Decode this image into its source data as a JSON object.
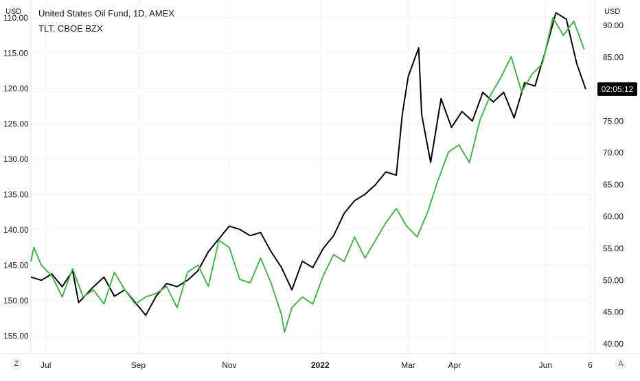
{
  "chart_data": {
    "type": "line",
    "title": "United States Oil Fund, 1D, AMEX",
    "subtitle": "TLT, CBOE BZX",
    "left_axis": {
      "unit": "USD",
      "inverted": true,
      "ticks": [
        "110.00",
        "115.00",
        "120.00",
        "125.00",
        "130.00",
        "135.00",
        "140.00",
        "145.00",
        "150.00",
        "155.00"
      ],
      "range": [
        107.5,
        157.5
      ]
    },
    "right_axis": {
      "unit": "USD",
      "ticks": [
        "90.00",
        "85.00",
        "80.00",
        "75.00",
        "70.00",
        "65.00",
        "60.00",
        "55.00",
        "50.00",
        "45.00",
        "40.00"
      ],
      "range": [
        38.5,
        94.0
      ],
      "price_label": "02:05:12",
      "price_value": 80.0
    },
    "x_ticks": [
      "Jul",
      "Sep",
      "Nov",
      "2022",
      "Mar",
      "Apr",
      "Jun",
      "6"
    ],
    "x_tick_dates": [
      "2021-07-01",
      "2021-09-01",
      "2021-11-01",
      "2022-01-01",
      "2022-03-01",
      "2022-04-01",
      "2022-06-01",
      "2022-07-01"
    ],
    "x_range": [
      "2021-06-21",
      "2022-07-04"
    ],
    "grid": true,
    "series": [
      {
        "name": "United States Oil Fund",
        "axis": "right",
        "color": "#000000",
        "points": [
          [
            "2021-06-21",
            50.5
          ],
          [
            "2021-06-28",
            50.0
          ],
          [
            "2021-07-05",
            51.0
          ],
          [
            "2021-07-12",
            49.0
          ],
          [
            "2021-07-19",
            51.5
          ],
          [
            "2021-07-23",
            46.5
          ],
          [
            "2021-08-02",
            49.0
          ],
          [
            "2021-08-09",
            50.5
          ],
          [
            "2021-08-16",
            47.5
          ],
          [
            "2021-08-23",
            48.5
          ],
          [
            "2021-08-30",
            46.5
          ],
          [
            "2021-09-06",
            44.5
          ],
          [
            "2021-09-13",
            47.5
          ],
          [
            "2021-09-20",
            49.5
          ],
          [
            "2021-09-27",
            49.0
          ],
          [
            "2021-10-04",
            50.0
          ],
          [
            "2021-10-11",
            51.5
          ],
          [
            "2021-10-18",
            54.5
          ],
          [
            "2021-10-25",
            56.5
          ],
          [
            "2021-11-01",
            58.5
          ],
          [
            "2021-11-08",
            58.0
          ],
          [
            "2021-11-15",
            57.0
          ],
          [
            "2021-11-22",
            57.5
          ],
          [
            "2021-11-29",
            54.5
          ],
          [
            "2021-12-06",
            52.0
          ],
          [
            "2021-12-13",
            48.5
          ],
          [
            "2021-12-20",
            53.0
          ],
          [
            "2021-12-27",
            52.0
          ],
          [
            "2022-01-03",
            55.0
          ],
          [
            "2022-01-10",
            57.0
          ],
          [
            "2022-01-17",
            60.5
          ],
          [
            "2022-01-24",
            62.5
          ],
          [
            "2022-01-31",
            63.5
          ],
          [
            "2022-02-07",
            65.0
          ],
          [
            "2022-02-14",
            67.0
          ],
          [
            "2022-02-21",
            66.5
          ],
          [
            "2022-02-25",
            76.0
          ],
          [
            "2022-03-01",
            82.0
          ],
          [
            "2022-03-08",
            86.5
          ],
          [
            "2022-03-10",
            76.0
          ],
          [
            "2022-03-16",
            68.5
          ],
          [
            "2022-03-23",
            78.5
          ],
          [
            "2022-03-30",
            74.0
          ],
          [
            "2022-04-06",
            76.5
          ],
          [
            "2022-04-13",
            75.0
          ],
          [
            "2022-04-20",
            79.5
          ],
          [
            "2022-04-27",
            78.0
          ],
          [
            "2022-05-04",
            79.5
          ],
          [
            "2022-05-11",
            75.5
          ],
          [
            "2022-05-18",
            81.0
          ],
          [
            "2022-05-25",
            80.5
          ],
          [
            "2022-06-01",
            86.0
          ],
          [
            "2022-06-08",
            92.0
          ],
          [
            "2022-06-15",
            91.0
          ],
          [
            "2022-06-22",
            84.0
          ],
          [
            "2022-06-28",
            80.0
          ]
        ]
      },
      {
        "name": "TLT",
        "axis": "left",
        "color": "#4caf50",
        "points": [
          [
            "2021-06-21",
            144.5
          ],
          [
            "2021-06-23",
            142.5
          ],
          [
            "2021-06-28",
            145.0
          ],
          [
            "2021-07-05",
            146.5
          ],
          [
            "2021-07-12",
            149.5
          ],
          [
            "2021-07-19",
            145.5
          ],
          [
            "2021-07-26",
            149.5
          ],
          [
            "2021-08-02",
            148.5
          ],
          [
            "2021-08-09",
            150.5
          ],
          [
            "2021-08-16",
            146.0
          ],
          [
            "2021-08-23",
            148.5
          ],
          [
            "2021-08-30",
            150.5
          ],
          [
            "2021-09-06",
            149.5
          ],
          [
            "2021-09-13",
            149.0
          ],
          [
            "2021-09-20",
            148.0
          ],
          [
            "2021-09-27",
            151.0
          ],
          [
            "2021-10-04",
            146.0
          ],
          [
            "2021-10-11",
            145.0
          ],
          [
            "2021-10-18",
            148.0
          ],
          [
            "2021-10-25",
            141.5
          ],
          [
            "2021-11-01",
            142.5
          ],
          [
            "2021-11-08",
            147.0
          ],
          [
            "2021-11-15",
            147.5
          ],
          [
            "2021-11-22",
            144.0
          ],
          [
            "2021-11-29",
            147.5
          ],
          [
            "2021-12-06",
            152.0
          ],
          [
            "2021-12-08",
            154.5
          ],
          [
            "2021-12-13",
            151.0
          ],
          [
            "2021-12-20",
            149.5
          ],
          [
            "2021-12-27",
            150.5
          ],
          [
            "2022-01-03",
            146.5
          ],
          [
            "2022-01-10",
            143.5
          ],
          [
            "2022-01-17",
            144.5
          ],
          [
            "2022-01-24",
            141.0
          ],
          [
            "2022-01-31",
            144.0
          ],
          [
            "2022-02-07",
            141.5
          ],
          [
            "2022-02-14",
            139.0
          ],
          [
            "2022-02-21",
            137.0
          ],
          [
            "2022-02-28",
            139.5
          ],
          [
            "2022-03-07",
            141.0
          ],
          [
            "2022-03-14",
            137.5
          ],
          [
            "2022-03-21",
            133.0
          ],
          [
            "2022-03-28",
            129.0
          ],
          [
            "2022-04-04",
            128.0
          ],
          [
            "2022-04-11",
            130.5
          ],
          [
            "2022-04-18",
            124.5
          ],
          [
            "2022-04-25",
            121.0
          ],
          [
            "2022-05-02",
            118.5
          ],
          [
            "2022-05-09",
            115.5
          ],
          [
            "2022-05-16",
            120.5
          ],
          [
            "2022-05-23",
            118.0
          ],
          [
            "2022-05-30",
            116.5
          ],
          [
            "2022-06-06",
            110.0
          ],
          [
            "2022-06-13",
            112.5
          ],
          [
            "2022-06-20",
            110.5
          ],
          [
            "2022-06-27",
            114.5
          ]
        ]
      }
    ]
  },
  "corner_left_label": "Z",
  "corner_right_label": "A"
}
